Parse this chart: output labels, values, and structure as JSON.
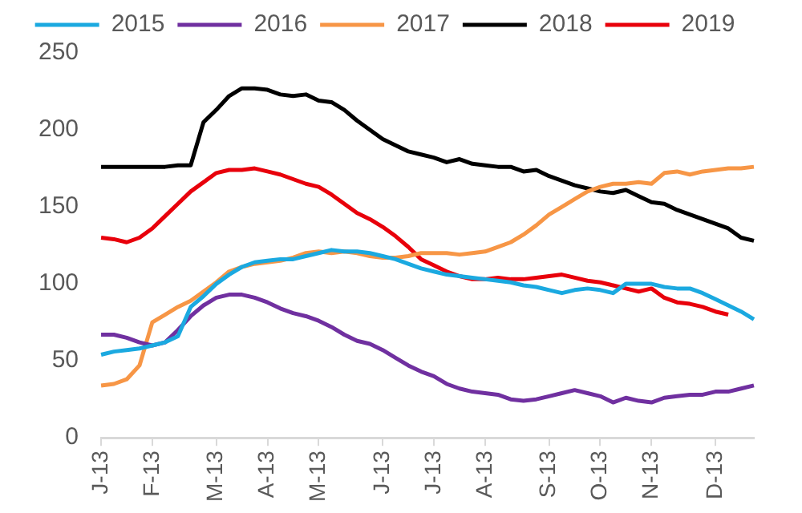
{
  "chart_data": {
    "type": "line",
    "categories": [
      "J-13",
      null,
      null,
      null,
      "F-13",
      null,
      null,
      null,
      null,
      "M-13",
      null,
      null,
      null,
      "A-13",
      null,
      null,
      null,
      "M-13",
      null,
      null,
      null,
      null,
      "J-13",
      null,
      null,
      null,
      "J-13",
      null,
      null,
      null,
      "A-13",
      null,
      null,
      null,
      null,
      "S-13",
      null,
      null,
      null,
      "O-13",
      null,
      null,
      null,
      "N-13",
      null,
      null,
      null,
      null,
      "D-13",
      null,
      null,
      null
    ],
    "series": [
      {
        "name": "2015",
        "color": "#1ba9e0",
        "values": [
          54,
          56,
          57,
          58,
          60,
          62,
          66,
          85,
          92,
          100,
          106,
          111,
          114,
          115,
          116,
          116,
          118,
          120,
          122,
          121,
          121,
          120,
          118,
          116,
          113,
          110,
          108,
          106,
          105,
          104,
          103,
          102,
          101,
          99,
          98,
          96,
          94,
          96,
          97,
          96,
          94,
          100,
          100,
          100,
          98,
          97,
          97,
          94,
          90,
          86,
          82,
          77
        ]
      },
      {
        "name": "2016",
        "color": "#7030a0",
        "values": [
          67,
          67,
          65,
          62,
          60,
          62,
          70,
          79,
          86,
          91,
          93,
          93,
          91,
          88,
          84,
          81,
          79,
          76,
          72,
          67,
          63,
          61,
          57,
          52,
          47,
          43,
          40,
          35,
          32,
          30,
          29,
          28,
          25,
          24,
          25,
          27,
          29,
          31,
          29,
          27,
          23,
          26,
          24,
          23,
          26,
          27,
          28,
          28,
          30,
          30,
          32,
          34
        ]
      },
      {
        "name": "2017",
        "color": "#f79646",
        "values": [
          34,
          35,
          38,
          47,
          75,
          80,
          85,
          89,
          95,
          101,
          108,
          111,
          113,
          114,
          115,
          117,
          120,
          121,
          120,
          121,
          120,
          118,
          117,
          117,
          118,
          120,
          120,
          120,
          119,
          120,
          121,
          124,
          127,
          132,
          138,
          145,
          150,
          155,
          160,
          163,
          165,
          165,
          166,
          165,
          172,
          173,
          171,
          173,
          174,
          175,
          175,
          176
        ]
      },
      {
        "name": "2018",
        "color": "#000000",
        "values": [
          176,
          176,
          176,
          176,
          176,
          176,
          177,
          177,
          205,
          213,
          222,
          227,
          227,
          226,
          223,
          222,
          223,
          219,
          218,
          213,
          206,
          200,
          194,
          190,
          186,
          184,
          182,
          179,
          181,
          178,
          177,
          176,
          176,
          173,
          174,
          170,
          167,
          164,
          162,
          160,
          159,
          161,
          157,
          153,
          152,
          148,
          145,
          142,
          139,
          136,
          130,
          128
        ]
      },
      {
        "name": "2019",
        "color": "#e8000b",
        "values": [
          130,
          129,
          127,
          130,
          136,
          144,
          152,
          160,
          166,
          172,
          174,
          174,
          175,
          173,
          171,
          168,
          165,
          163,
          158,
          152,
          146,
          142,
          137,
          131,
          124,
          116,
          112,
          108,
          105,
          103,
          103,
          104,
          103,
          103,
          104,
          105,
          106,
          104,
          102,
          101,
          99,
          97,
          95,
          97,
          91,
          88,
          87,
          85,
          82,
          80,
          null,
          null
        ]
      }
    ],
    "ylim": [
      0,
      250
    ],
    "yticks": [
      0,
      50,
      100,
      150,
      200,
      250
    ],
    "grid": false,
    "legend": "top"
  }
}
